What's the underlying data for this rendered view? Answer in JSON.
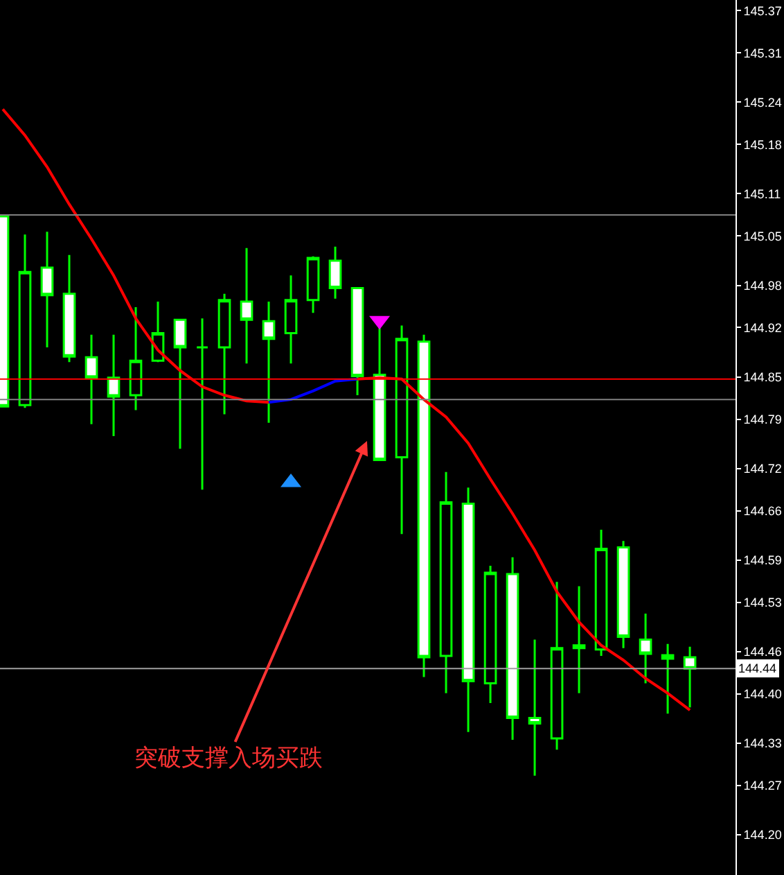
{
  "chart_data": {
    "type": "candlestick",
    "categories": [
      null,
      null,
      null,
      null,
      null,
      null,
      null,
      null,
      null,
      null,
      null,
      null,
      null,
      null,
      null,
      null,
      null,
      null,
      null,
      null,
      null,
      null,
      null,
      null,
      null,
      null,
      null,
      null,
      null,
      null,
      null,
      null
    ],
    "series": [
      {
        "color": "#00ff00",
        "ohlc": [
          [
            145.078,
            145.08,
            144.808,
            144.808
          ],
          [
            144.81,
            145.052,
            144.806,
            144.999
          ],
          [
            145.005,
            145.056,
            144.892,
            144.966
          ],
          [
            144.968,
            145.023,
            144.871,
            144.879
          ],
          [
            144.878,
            144.91,
            144.783,
            144.849
          ],
          [
            144.849,
            144.91,
            144.766,
            144.822
          ],
          [
            144.824,
            144.949,
            144.803,
            144.873
          ],
          [
            144.873,
            144.957,
            144.871,
            144.912
          ],
          [
            144.931,
            144.931,
            144.748,
            144.892
          ],
          [
            144.892,
            144.933,
            144.69,
            144.892
          ],
          [
            144.892,
            144.968,
            144.797,
            144.959
          ],
          [
            144.957,
            145.033,
            144.869,
            144.931
          ],
          [
            144.929,
            144.957,
            144.785,
            144.904
          ],
          [
            144.912,
            144.994,
            144.869,
            144.959
          ],
          [
            144.959,
            145.021,
            144.941,
            145.019
          ],
          [
            145.015,
            145.035,
            144.961,
            144.976
          ],
          [
            144.976,
            144.976,
            144.824,
            144.851
          ],
          [
            144.853,
            144.922,
            144.732,
            144.732
          ],
          [
            144.736,
            144.923,
            144.627,
            144.904
          ],
          [
            144.9,
            144.91,
            144.424,
            144.452
          ],
          [
            144.454,
            144.715,
            144.401,
            144.672
          ],
          [
            144.67,
            144.693,
            144.346,
            144.418
          ],
          [
            144.415,
            144.582,
            144.387,
            144.572
          ],
          [
            144.57,
            144.594,
            144.335,
            144.366
          ],
          [
            144.366,
            144.477,
            144.284,
            144.358
          ],
          [
            144.337,
            144.559,
            144.321,
            144.465
          ],
          [
            144.469,
            144.553,
            144.401,
            144.465
          ],
          [
            144.463,
            144.633,
            144.454,
            144.606
          ],
          [
            144.608,
            144.617,
            144.465,
            144.481
          ],
          [
            144.477,
            144.514,
            144.415,
            144.457
          ],
          [
            144.455,
            144.471,
            144.372,
            144.45
          ],
          [
            144.452,
            144.467,
            144.381,
            144.436
          ]
        ]
      },
      {
        "type": "line",
        "color": "#ff0000",
        "values": [
          145.23,
          145.193,
          145.148,
          145.095,
          145.046,
          144.994,
          144.933,
          144.888,
          144.859,
          144.836,
          144.824,
          144.816,
          144.814,
          null,
          null,
          null,
          144.847,
          144.849,
          144.847,
          144.818,
          144.793,
          144.756,
          144.705,
          144.656,
          144.604,
          144.545,
          144.502,
          144.469,
          144.448,
          144.422,
          144.401,
          144.377
        ]
      },
      {
        "type": "line",
        "color": "#0000ff",
        "values": [
          null,
          null,
          null,
          null,
          null,
          null,
          null,
          null,
          null,
          null,
          null,
          null,
          144.814,
          144.818,
          144.83,
          144.844,
          144.847,
          null,
          null,
          null,
          null,
          null,
          null,
          null,
          null,
          null,
          null,
          null,
          null,
          null,
          null,
          null
        ]
      },
      {
        "type": "scatter",
        "marker": "triangle",
        "color": "#1e90ff",
        "values": [
          null,
          null,
          null,
          null,
          null,
          null,
          null,
          null,
          null,
          null,
          null,
          null,
          null,
          144.7,
          null,
          null,
          null,
          null,
          null,
          null,
          null,
          null,
          null,
          null,
          null,
          null,
          null,
          null,
          null,
          null,
          null,
          null
        ]
      },
      {
        "type": "scatter",
        "marker": "triangle-down",
        "color": "#ff00ff",
        "values": [
          null,
          null,
          null,
          null,
          null,
          null,
          null,
          null,
          null,
          null,
          null,
          null,
          null,
          null,
          null,
          null,
          null,
          144.93,
          null,
          null,
          null,
          null,
          null,
          null,
          null,
          null,
          null,
          null,
          null,
          null,
          null,
          null
        ]
      }
    ],
    "ylim": [
      144.143,
      145.385
    ],
    "yticks": [
      145.37,
      145.31,
      145.24,
      145.18,
      145.11,
      145.05,
      144.98,
      144.92,
      144.85,
      144.79,
      144.72,
      144.66,
      144.59,
      144.53,
      144.46,
      {
        "value": 144.4,
        "label": "144.40"
      },
      144.33,
      144.27,
      {
        "value": 144.2,
        "label": "144.20"
      }
    ],
    "ref_lines": [
      {
        "axis": "y",
        "value": 145.08,
        "color": "#808080"
      },
      {
        "axis": "y",
        "value": 144.847,
        "color": "#ff0000"
      },
      {
        "axis": "y",
        "value": 144.818,
        "color": "#808080"
      },
      {
        "axis": "y",
        "value": 144.436,
        "label": "144.44",
        "color": "#a0a0a0"
      }
    ],
    "annotations": [
      "突破支撑入场买跌"
    ],
    "tick_labels": "y",
    "grid": false
  }
}
